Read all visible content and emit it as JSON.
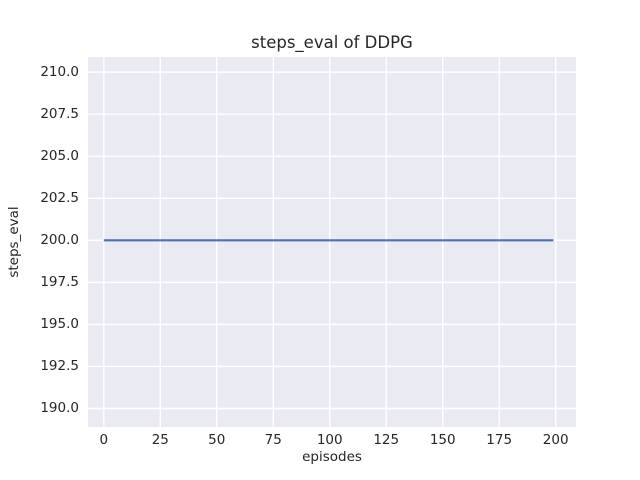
{
  "chart_data": {
    "type": "line",
    "title": "steps_eval of DDPG",
    "xlabel": "episodes",
    "ylabel": "steps_eval",
    "xlim": [
      -7,
      209
    ],
    "ylim": [
      188.9,
      210.9
    ],
    "grid": true,
    "legend_position": "none",
    "xticks": [
      {
        "value": 0,
        "label": "0"
      },
      {
        "value": 25,
        "label": "25"
      },
      {
        "value": 50,
        "label": "50"
      },
      {
        "value": 75,
        "label": "75"
      },
      {
        "value": 100,
        "label": "100"
      },
      {
        "value": 125,
        "label": "125"
      },
      {
        "value": 150,
        "label": "150"
      },
      {
        "value": 175,
        "label": "175"
      },
      {
        "value": 200,
        "label": "200"
      }
    ],
    "yticks": [
      {
        "value": 190.0,
        "label": "190.0"
      },
      {
        "value": 192.5,
        "label": "192.5"
      },
      {
        "value": 195.0,
        "label": "195.0"
      },
      {
        "value": 197.5,
        "label": "197.5"
      },
      {
        "value": 200.0,
        "label": "200.0"
      },
      {
        "value": 202.5,
        "label": "202.5"
      },
      {
        "value": 205.0,
        "label": "205.0"
      },
      {
        "value": 207.5,
        "label": "207.5"
      },
      {
        "value": 210.0,
        "label": "210.0"
      }
    ],
    "series": [
      {
        "name": "DDPG",
        "color": "#4C72B0",
        "x": [
          0,
          199
        ],
        "y": [
          200.0,
          200.0
        ]
      }
    ],
    "style": {
      "figure_background": "#FFFFFF",
      "axes_background": "#EAEAF2",
      "grid_color": "#FFFFFF",
      "text_color": "#262626",
      "line_width": 2.2,
      "grid_width": 1.4
    }
  }
}
